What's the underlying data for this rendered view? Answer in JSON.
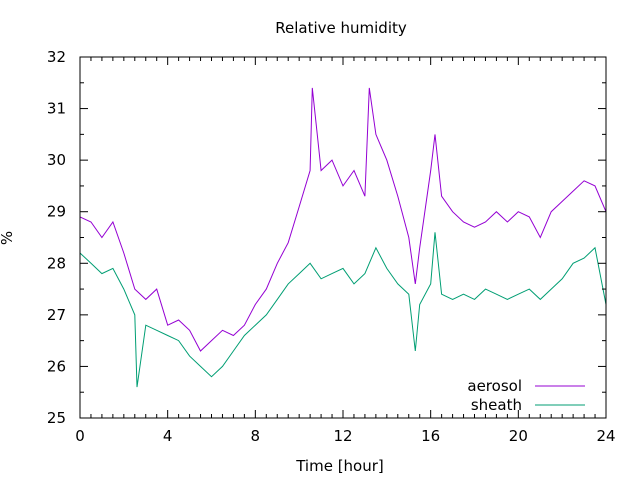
{
  "chart_data": {
    "type": "line",
    "title": "Relative humidity",
    "xlabel": "Time [hour]",
    "ylabel": "%",
    "xlim": [
      0,
      24
    ],
    "ylim": [
      25,
      32
    ],
    "xticks": [
      0,
      4,
      8,
      12,
      16,
      20,
      24
    ],
    "yticks": [
      25,
      26,
      27,
      28,
      29,
      30,
      31,
      32
    ],
    "grid": false,
    "legend_position": "bottom-right",
    "series": [
      {
        "name": "aerosol",
        "color": "#9400d3",
        "x": [
          0,
          0.5,
          1,
          1.5,
          2,
          2.5,
          3,
          3.5,
          4,
          4.5,
          5,
          5.5,
          6,
          6.5,
          7,
          7.5,
          8,
          8.5,
          9,
          9.5,
          10,
          10.5,
          10.6,
          11,
          11.5,
          12,
          12.5,
          13,
          13.2,
          13.5,
          14,
          14.5,
          15,
          15.3,
          15.5,
          16,
          16.2,
          16.5,
          17,
          17.5,
          18,
          18.5,
          19,
          19.5,
          20,
          20.5,
          21,
          21.5,
          22,
          22.5,
          23,
          23.5,
          24
        ],
        "y": [
          28.9,
          28.8,
          28.5,
          28.8,
          28.2,
          27.5,
          27.3,
          27.5,
          26.8,
          26.9,
          26.7,
          26.3,
          26.5,
          26.7,
          26.6,
          26.8,
          27.2,
          27.5,
          28.0,
          28.4,
          29.1,
          29.8,
          31.4,
          29.8,
          30.0,
          29.5,
          29.8,
          29.3,
          31.4,
          30.5,
          30.0,
          29.3,
          28.5,
          27.6,
          28.3,
          29.8,
          30.5,
          29.3,
          29.0,
          28.8,
          28.7,
          28.8,
          29.0,
          28.8,
          29.0,
          28.9,
          28.5,
          29.0,
          29.2,
          29.4,
          29.6,
          29.5,
          29.0
        ]
      },
      {
        "name": "sheath",
        "color": "#009e73",
        "x": [
          0,
          0.5,
          1,
          1.5,
          2,
          2.5,
          2.6,
          3,
          3.5,
          4,
          4.5,
          5,
          5.5,
          6,
          6.5,
          7,
          7.5,
          8,
          8.5,
          9,
          9.5,
          10,
          10.5,
          11,
          11.5,
          12,
          12.5,
          13,
          13.5,
          14,
          14.5,
          15,
          15.3,
          15.5,
          16,
          16.2,
          16.5,
          17,
          17.5,
          18,
          18.5,
          19,
          19.5,
          20,
          20.5,
          21,
          21.5,
          22,
          22.5,
          23,
          23.5,
          24
        ],
        "y": [
          28.2,
          28.0,
          27.8,
          27.9,
          27.5,
          27.0,
          25.6,
          26.8,
          26.7,
          26.6,
          26.5,
          26.2,
          26.0,
          25.8,
          26.0,
          26.3,
          26.6,
          26.8,
          27.0,
          27.3,
          27.6,
          27.8,
          28.0,
          27.7,
          27.8,
          27.9,
          27.6,
          27.8,
          28.3,
          27.9,
          27.6,
          27.4,
          26.3,
          27.2,
          27.6,
          28.6,
          27.4,
          27.3,
          27.4,
          27.3,
          27.5,
          27.4,
          27.3,
          27.4,
          27.5,
          27.3,
          27.5,
          27.7,
          28.0,
          28.1,
          28.3,
          27.2
        ]
      }
    ]
  }
}
